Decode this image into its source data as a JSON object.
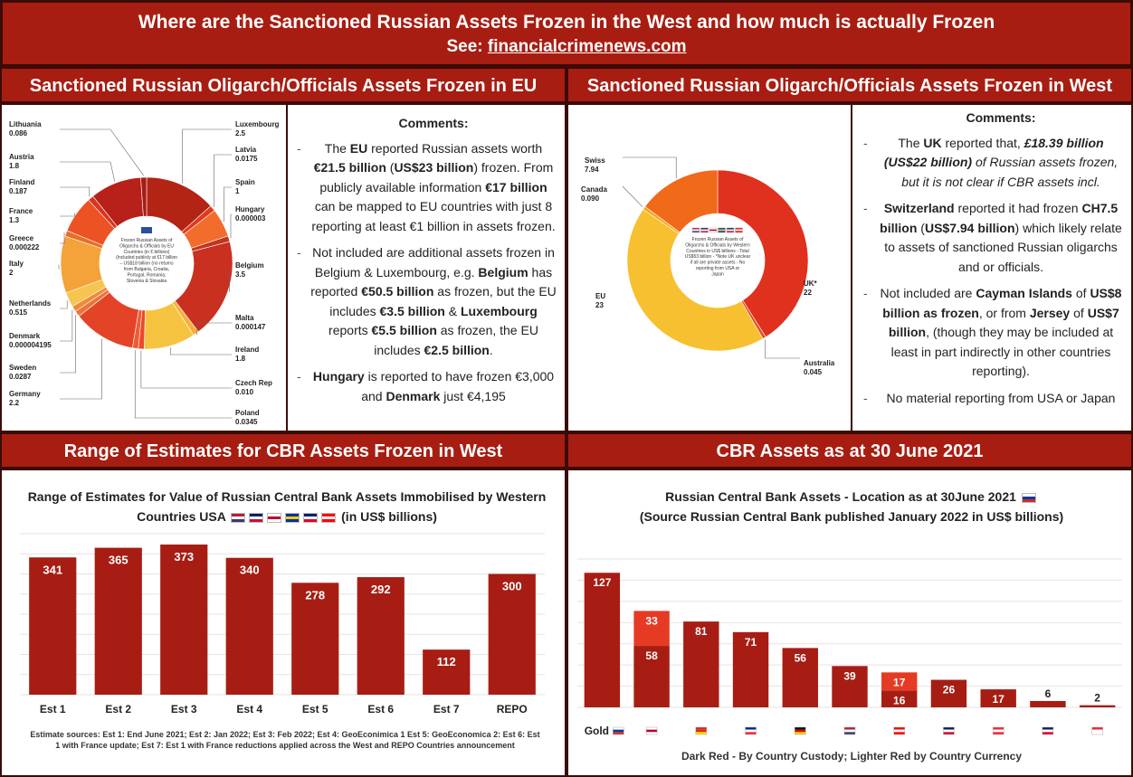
{
  "header": {
    "title": "Where are the Sanctioned Russian Assets Frozen in the West and how much is actually Frozen",
    "see_label": "See:",
    "link": "financialcrimenews.com"
  },
  "panels": {
    "eu_head": "Sanctioned Russian Oligarch/Officials Assets Frozen in EU",
    "west_head": "Sanctioned Russian Oligarch/Officials Assets Frozen in West",
    "cbr_range_head": "Range of Estimates for CBR Assets Frozen in West",
    "cbr_assets_head": "CBR Assets as at 30 June 2021"
  },
  "eu_comments": {
    "title": "Comments:",
    "p1": [
      {
        "t": "The ",
        "b": false
      },
      {
        "t": "EU",
        "b": true
      },
      {
        "t": " reported Russian assets worth ",
        "b": false
      },
      {
        "t": "€21.5 billion",
        "b": true
      },
      {
        "t": " (",
        "b": false
      },
      {
        "t": "US$23 billion",
        "b": true
      },
      {
        "t": ") frozen. From publicly available information ",
        "b": false
      },
      {
        "t": "€17 billion",
        "b": true
      },
      {
        "t": " can be mapped to EU countries with just 8 reporting at least €1 billion in assets frozen.",
        "b": false
      }
    ],
    "p2": [
      {
        "t": "Not included are additional assets frozen in Belgium & Luxembourg, e.g. ",
        "b": false
      },
      {
        "t": "Belgium",
        "b": true
      },
      {
        "t": " has reported ",
        "b": false
      },
      {
        "t": "€50.5 billion",
        "b": true
      },
      {
        "t": " as frozen, but the EU includes ",
        "b": false
      },
      {
        "t": "€3.5 billion",
        "b": true
      },
      {
        "t": " & ",
        "b": false
      },
      {
        "t": "Luxembourg",
        "b": true
      },
      {
        "t": " reports ",
        "b": false
      },
      {
        "t": "€5.5 billion",
        "b": true
      },
      {
        "t": " as frozen, the EU includes ",
        "b": false
      },
      {
        "t": "€2.5 billion",
        "b": true
      },
      {
        "t": ".",
        "b": false
      }
    ],
    "p3": [
      {
        "t": "Hungary",
        "b": true
      },
      {
        "t": " is reported to have frozen €3,000 and ",
        "b": false
      },
      {
        "t": "Denmark",
        "b": true
      },
      {
        "t": " just €4,195",
        "b": false
      }
    ]
  },
  "west_comments": {
    "title": "Comments:",
    "p1": [
      {
        "t": "The ",
        "b": false
      },
      {
        "t": "UK",
        "b": true
      },
      {
        "t": " reported that, ",
        "b": false
      },
      {
        "t": "£18.39 billion (US$22 billion)",
        "b": true,
        "i": true
      },
      {
        "t": " of Russian assets frozen, but it is not clear if CBR assets incl.",
        "b": false,
        "i": true
      }
    ],
    "p2": [
      {
        "t": "Switzerland",
        "b": true
      },
      {
        "t": " reported it had frozen ",
        "b": false
      },
      {
        "t": "CH7.5 billion",
        "b": true
      },
      {
        "t": " (",
        "b": false
      },
      {
        "t": "US$7.94 billion",
        "b": true
      },
      {
        "t": ") which likely relate to assets of sanctioned Russian oligarchs and or officials.",
        "b": false
      }
    ],
    "p3": [
      {
        "t": "Not included are ",
        "b": false
      },
      {
        "t": "Cayman Islands",
        "b": true
      },
      {
        "t": " of ",
        "b": false
      },
      {
        "t": "US$8 billion as frozen",
        "b": true
      },
      {
        "t": ", or from ",
        "b": false
      },
      {
        "t": "Jersey",
        "b": true
      },
      {
        "t": " of ",
        "b": false
      },
      {
        "t": "US$7 billion",
        "b": true
      },
      {
        "t": ", (though they may be included at least in part indirectly in other countries reporting).",
        "b": false
      }
    ],
    "p4": [
      {
        "t": "No material reporting from USA or Japan",
        "b": false
      }
    ]
  },
  "eu_donut": {
    "center_text": [
      "Frozen Russian Assets of",
      "Oligarchs & Officials by EU",
      "Countries (in € billions)",
      "(Included publicly at €17 billion",
      "– US$18 billion (no returns",
      "from Bulgaria, Croatia,",
      "Portugal, Romania,",
      "Slovenia & Slovakia"
    ]
  },
  "west_donut": {
    "center_text": [
      "Frozen Russian Assets of",
      "Oligarchs & Officials by Western",
      "Countries in US$ billions - Total",
      "US$53 billion - *Note UK unclear",
      "if all are private assets - No",
      "reporting from USA or",
      "Japan"
    ]
  },
  "chart_data": [
    {
      "type": "pie",
      "title": "",
      "labels": [
        "Luxembourg",
        "Latvia",
        "Spain",
        "Hungary",
        "Belgium",
        "Malta",
        "Ireland",
        "Czech Rep",
        "Poland",
        "Germany",
        "Sweden",
        "Denmark",
        "Netherlands",
        "Italy",
        "Greece",
        "France",
        "Finland",
        "Austria",
        "Lithuania"
      ],
      "values": [
        2.5,
        0.0175,
        1,
        3e-06,
        3.5,
        0.000147,
        1.8,
        0.01,
        0.0345,
        2.2,
        0.0287,
        4.195e-06,
        0.515,
        2,
        0.000222,
        1.3,
        0.187,
        1.8,
        0.086
      ],
      "value_labels": [
        "2.5",
        "0.0175",
        "1",
        "0.000003",
        "3.5",
        "0.000147",
        "1.8",
        "0.010",
        "0.0345",
        "2.2",
        "0.0287",
        "0.000004195",
        "0.515",
        "2",
        "0.000222",
        "1.3",
        "0.187",
        "1.8",
        "0.086"
      ],
      "colors": [
        "#b32414",
        "#e0391f",
        "#f26c2b",
        "#c2361f",
        "#c9301f",
        "#f5b13a",
        "#f6c341",
        "#eb4a2a",
        "#ee5b36",
        "#e34427",
        "#ed7336",
        "#f08a3a",
        "#f5c550",
        "#f3a33a",
        "#e86e26",
        "#ec5223",
        "#d8351f",
        "#b8201a",
        "#a71c14"
      ]
    },
    {
      "type": "pie",
      "title": "",
      "labels": [
        "UK*",
        "Australia",
        "EU",
        "Canada",
        "Swiss"
      ],
      "values": [
        22,
        0.045,
        23,
        0.09,
        7.94
      ],
      "value_labels": [
        "22",
        "0.045",
        "23",
        "0.090",
        "7.94"
      ],
      "colors": [
        "#e0301e",
        "#e6521e",
        "#f6c030",
        "#f4a821",
        "#f06a1a"
      ]
    },
    {
      "type": "bar",
      "title": "Range of Estimates for Value of Russian Central Bank Assets Immobilised by Western Countries USA",
      "title_suffix": "(in US$ billions)",
      "categories": [
        "Est 1",
        "Est 2",
        "Est 3",
        "Est 4",
        "Est 5",
        "Est 6",
        "Est 7",
        "REPO"
      ],
      "values": [
        341,
        365,
        373,
        340,
        278,
        292,
        112,
        300
      ],
      "ylim": [
        0,
        400
      ],
      "grid": true,
      "bar_color": "#a71d14",
      "footnote": "Estimate sources: Est 1: End June 2021; Est 2: Jan 2022; Est 3: Feb 2022; Est 4: GeoEconimica 1 Est 5: GeoEconomica 2: Est 6: Est 1 with France update; Est 7: Est 1 with France reductions applied across the West and REPO Countries announcement"
    },
    {
      "type": "bar",
      "title": "Russian Central Bank Assets - Location as at 30June 2021",
      "subtitle": "(Source Russian Central Bank published January 2022 in US$ billions)",
      "categories": [
        "Gold",
        "Japan",
        "China",
        "France",
        "Germany",
        "USA",
        "Canada",
        "UK",
        "Austria",
        "Australia",
        "Singapore"
      ],
      "series": [
        {
          "values": [
            127,
            58,
            81,
            71,
            56,
            39,
            16,
            26,
            17,
            6,
            2
          ],
          "color": "#a71d14"
        },
        {
          "values": [
            0,
            33,
            0,
            0,
            0,
            0,
            17,
            0,
            0,
            0,
            0
          ],
          "color": "#e53b25"
        }
      ],
      "value_labels": [
        [
          "127"
        ],
        [
          "33",
          "58"
        ],
        [
          "81"
        ],
        [
          "71"
        ],
        [
          "56"
        ],
        [
          "39"
        ],
        [
          "17",
          "16"
        ],
        [
          "26"
        ],
        [
          "17"
        ],
        [
          "6"
        ],
        [
          "2"
        ]
      ],
      "ylim": [
        0,
        140
      ],
      "grid": true,
      "caption": "Dark Red - By Country Custody; Lighter Red by Country Currency"
    }
  ],
  "flags": {
    "range_chart": [
      {
        "name": "USA",
        "c": [
          "#b22234",
          "#ffffff",
          "#3c3b6e"
        ]
      },
      {
        "name": "UK",
        "c": [
          "#012169",
          "#ffffff",
          "#c8102e"
        ]
      },
      {
        "name": "Japan",
        "c": [
          "#ffffff",
          "#bc002d",
          "#ffffff"
        ]
      },
      {
        "name": "EU",
        "c": [
          "#003399",
          "#ffcc00",
          "#003399"
        ]
      },
      {
        "name": "Australia",
        "c": [
          "#012169",
          "#ffffff",
          "#e4002b"
        ]
      },
      {
        "name": "Canada",
        "c": [
          "#ff0000",
          "#ffffff",
          "#ff0000"
        ]
      }
    ],
    "russia": [
      "#ffffff",
      "#0039a6",
      "#d52b1e"
    ],
    "location_x": [
      [
        "#ffffff",
        "#0039a6",
        "#d52b1e"
      ],
      [
        "#ffffff",
        "#bc002d",
        "#ffffff"
      ],
      [
        "#de2910",
        "#de2910",
        "#ffde00"
      ],
      [
        "#002395",
        "#ffffff",
        "#ed2939"
      ],
      [
        "#000000",
        "#dd0000",
        "#ffce00"
      ],
      [
        "#b22234",
        "#ffffff",
        "#3c3b6e"
      ],
      [
        "#ff0000",
        "#ffffff",
        "#ff0000"
      ],
      [
        "#012169",
        "#ffffff",
        "#c8102e"
      ],
      [
        "#ed2939",
        "#ffffff",
        "#ed2939"
      ],
      [
        "#012169",
        "#ffffff",
        "#e4002b"
      ],
      [
        "#ee2536",
        "#ffffff",
        "#ffffff"
      ]
    ]
  },
  "colors": {
    "brand_red": "#a81d12",
    "dark_border": "#3a0b07"
  }
}
